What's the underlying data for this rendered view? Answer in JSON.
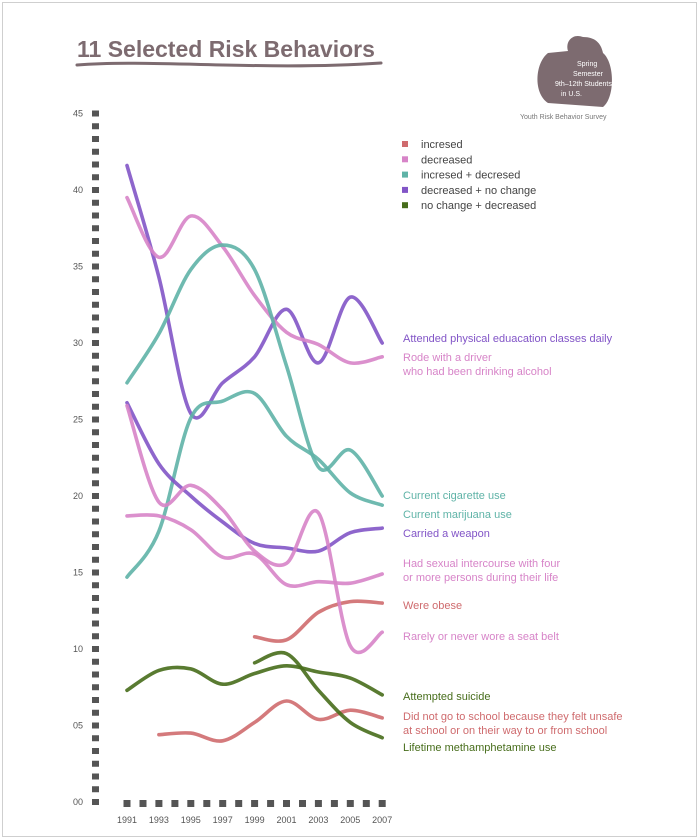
{
  "title": "11 Selected Risk Behaviors",
  "badge": {
    "lines": [
      "Spring",
      "Semester",
      "9th–12th Students",
      "in U.S."
    ],
    "caption": "Youth Risk Behavior Survey"
  },
  "legend": [
    {
      "label": "incresed",
      "color": "#cf6b6e"
    },
    {
      "label": "decreased",
      "color": "#d784c8"
    },
    {
      "label": "incresed + decresed",
      "color": "#5fb3a7"
    },
    {
      "label": "decreased + no change",
      "color": "#8255c7"
    },
    {
      "label": "no change + decreased",
      "color": "#476d1b"
    }
  ],
  "chart_data": {
    "type": "line",
    "x": [
      "1991",
      "1993",
      "1995",
      "1997",
      "1999",
      "2001",
      "2003",
      "2005",
      "2007"
    ],
    "y_ticks": [
      "00",
      "05",
      "10",
      "15",
      "20",
      "25",
      "30",
      "35",
      "40",
      "45"
    ],
    "ylim": [
      0,
      45
    ],
    "series": [
      {
        "name": "Attended physical eduacation classes daily",
        "color": "#8255c7",
        "lines": [
          "Attended physical eduacation classes daily"
        ],
        "values": [
          41.6,
          34.3,
          25.4,
          27.4,
          29.1,
          32.2,
          28.7,
          33.0,
          30.0
        ]
      },
      {
        "name": "Rode with a driver who had been drinking alcohol",
        "color": "#d784c8",
        "lines": [
          "Rode with a driver",
          "who had been drinking alcohol"
        ],
        "values": [
          39.5,
          35.6,
          38.3,
          36.3,
          33.1,
          30.7,
          29.9,
          28.7,
          29.1
        ]
      },
      {
        "name": "Current cigarette use",
        "color": "#5fb3a7",
        "lines": [
          "Current cigarette use"
        ],
        "values": [
          27.4,
          30.6,
          34.8,
          36.4,
          34.8,
          28.5,
          21.9,
          23.0,
          20.0
        ]
      },
      {
        "name": "Current marijuana use",
        "color": "#5fb3a7",
        "lines": [
          "Current marijuana use"
        ],
        "values": [
          14.7,
          17.7,
          25.1,
          26.2,
          26.7,
          23.9,
          22.4,
          20.2,
          19.4
        ]
      },
      {
        "name": "Carried a weapon",
        "color": "#8255c7",
        "lines": [
          "Carried a weapon"
        ],
        "values": [
          26.1,
          22.1,
          20.0,
          18.3,
          16.9,
          16.6,
          16.4,
          17.6,
          17.9
        ]
      },
      {
        "name": "Had sexual intercourse with four or more persons during their life",
        "color": "#d784c8",
        "lines": [
          "Had sexual intercourse with four",
          "or more persons during their life"
        ],
        "values": [
          18.7,
          18.7,
          17.8,
          16.0,
          16.2,
          14.2,
          14.4,
          14.3,
          14.9
        ]
      },
      {
        "name": "Were obese",
        "color": "#cf6b6e",
        "lines": [
          "Were obese"
        ],
        "x": [
          "1999",
          "2001",
          "2003",
          "2005",
          "2007"
        ],
        "values": [
          10.8,
          10.6,
          12.4,
          13.1,
          13.0
        ]
      },
      {
        "name": "Rarely or never wore a seat belt",
        "color": "#d784c8",
        "lines": [
          "Rarely or never wore a seat belt"
        ],
        "values": [
          25.9,
          19.6,
          20.7,
          19.1,
          16.4,
          15.6,
          18.9,
          10.2,
          11.1
        ]
      },
      {
        "name": "Attempted suicide",
        "color": "#476d1b",
        "lines": [
          "Attempted suicide"
        ],
        "values": [
          7.3,
          8.6,
          8.7,
          7.7,
          8.4,
          8.9,
          8.5,
          8.1,
          7.0
        ]
      },
      {
        "name": "Did not go to school because they felt unsafe at school or on their way to or from school",
        "color": "#cf6b6e",
        "lines": [
          "Did not go to school because they felt unsafe",
          "at school or on their way to or from school"
        ],
        "x": [
          "1993",
          "1995",
          "1997",
          "1999",
          "2001",
          "2003",
          "2005",
          "2007"
        ],
        "values": [
          4.4,
          4.5,
          4.0,
          5.2,
          6.6,
          5.4,
          6.0,
          5.5
        ]
      },
      {
        "name": "Lifetime methamphetamine use",
        "color": "#476d1b",
        "lines": [
          "Lifetime methamphetamine use"
        ],
        "x": [
          "1999",
          "2001",
          "2003",
          "2005",
          "2007"
        ],
        "values": [
          9.1,
          9.7,
          7.3,
          5.2,
          4.2
        ]
      }
    ]
  }
}
